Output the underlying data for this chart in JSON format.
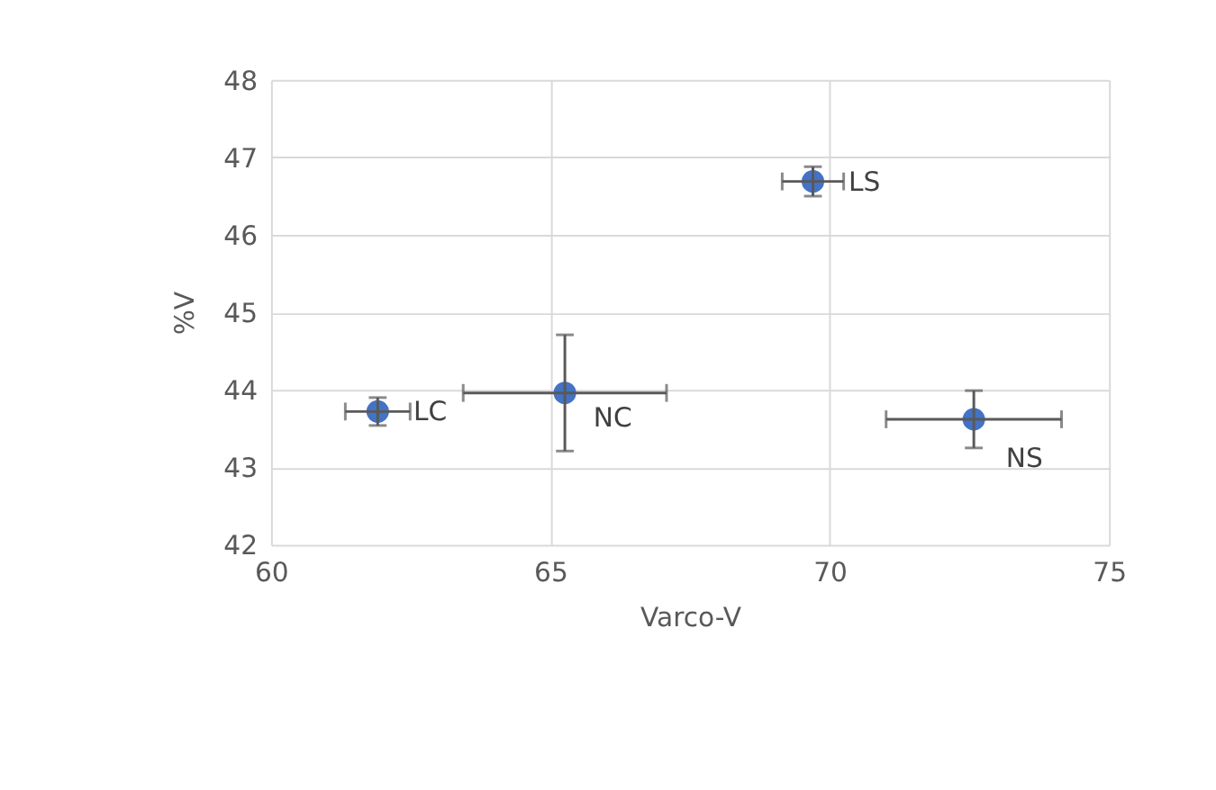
{
  "chart_data": {
    "type": "scatter",
    "xlabel": "Varco-V",
    "ylabel": "%V",
    "x": [
      69.7,
      61.91,
      65.26,
      72.58
    ],
    "series": [
      {
        "color": "#4472c4",
        "values": [
          46.69,
          43.72,
          43.96,
          43.62
        ],
        "errors": [
          0.19,
          0.18,
          0.75,
          0.37
        ],
        "xerrors": [
          0.55,
          0.58,
          1.82,
          1.57
        ]
      }
    ],
    "annotations": [
      {
        "text": "LS",
        "x": 69.7,
        "y": 46.69
      },
      {
        "text": "LC",
        "x": 61.91,
        "y": 43.72
      },
      {
        "text": "NC",
        "x": 65.26,
        "y": 43.96
      },
      {
        "text": "NS",
        "x": 72.58,
        "y": 43.62
      }
    ],
    "xlim": [
      60,
      75
    ],
    "xticks": [
      60,
      65,
      70,
      75
    ],
    "ylim": [
      42,
      48
    ],
    "yticks": [
      42,
      43,
      44,
      45,
      46,
      47,
      48
    ],
    "grid": true,
    "marker": "circle",
    "legend": false
  }
}
